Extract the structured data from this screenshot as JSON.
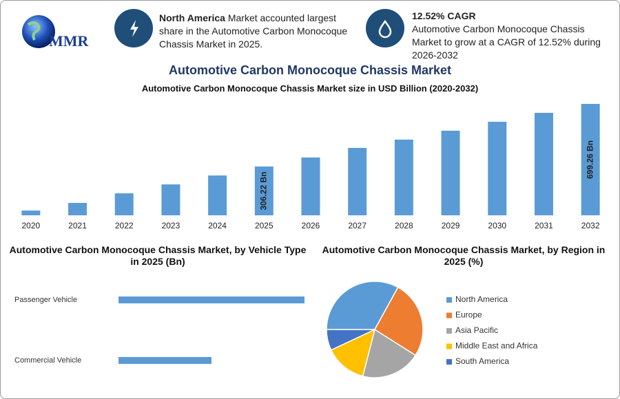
{
  "header": {
    "logo": "MMR",
    "stat1_bold": "North America",
    "stat1_text": " Market accounted largest share in the Automotive Carbon Monocoque Chassis Market in 2025.",
    "stat2_title": "12.52% CAGR",
    "stat2_text": "Automotive Carbon Monocoque Chassis Market to grow at a CAGR of 12.52% during 2026-2032"
  },
  "title": "Automotive Carbon Monocoque Chassis Market",
  "chart_data": [
    {
      "type": "bar",
      "title": "Automotive Carbon Monocoque Chassis Market size in USD Billion (2020-2032)",
      "categories": [
        "2020",
        "2021",
        "2022",
        "2023",
        "2024",
        "2025",
        "2026",
        "2027",
        "2028",
        "2029",
        "2030",
        "2031",
        "2032"
      ],
      "values": [
        30,
        78,
        138,
        194,
        250,
        306.22,
        363,
        423,
        475,
        531,
        587,
        643,
        699.26
      ],
      "value_labels": [
        null,
        null,
        null,
        null,
        null,
        "306.22 Bn",
        null,
        null,
        null,
        null,
        null,
        null,
        "699.26 Bn"
      ],
      "color": "#5b9bd5"
    },
    {
      "type": "bar",
      "orientation": "horizontal",
      "title": "Automotive Carbon Monocoque Chassis Market, by Vehicle Type in 2025 (Bn)",
      "categories": [
        "Passenger Vehicle",
        "Commercial Vehicle"
      ],
      "values": [
        204,
        102
      ],
      "color": "#5b9bd5"
    },
    {
      "type": "pie",
      "title": "Automotive Carbon Monocoque Chassis Market, by Region in 2025 (%)",
      "categories": [
        "North America",
        "Europe",
        "Asia Pacific",
        "Middle East and Africa",
        "South America"
      ],
      "values": [
        33,
        26,
        20,
        14,
        7
      ],
      "colors": [
        "#5b9bd5",
        "#ed7d31",
        "#a5a5a5",
        "#ffc000",
        "#4472c4"
      ]
    }
  ]
}
